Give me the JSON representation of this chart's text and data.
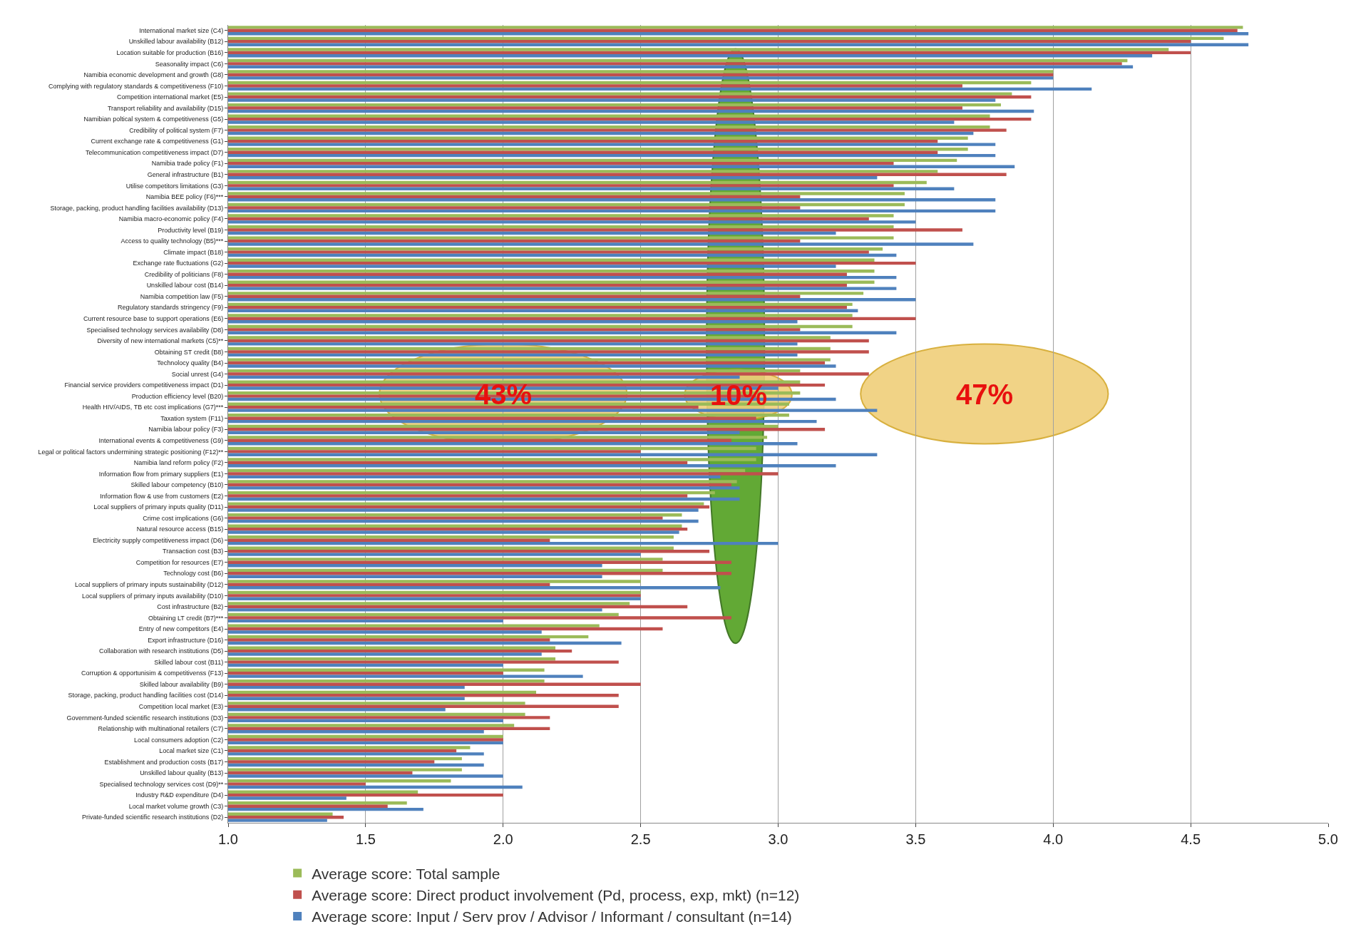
{
  "chart_data": {
    "type": "bar",
    "orientation": "horizontal",
    "categories": [
      "International market size (C4)",
      "Unskilled labour availability (B12)",
      "Location suitable for production (B16)",
      "Seasonality impact (C6)",
      "Namibia economic development and growth (G8)",
      "Complying with regulatory standards & competitiveness (F10)",
      "Competition international market (E5)",
      "Transport reliability and availability (D15)",
      "Namibian poltical system & competitiveness (G5)",
      "Credibility of political system (F7)",
      "Current exchange rate & competitiveness (G1)",
      "Telecommunication competitiveness impact (D7)",
      "Namibia trade policy (F1)",
      "General infrastructure (B1)",
      "Utilise competitors limitations (G3)",
      "Namibia BEE policy (F6)***",
      "Storage, packing, product handling facilities availability (D13)",
      "Namibia macro-economic policy (F4)",
      "Productivity level (B19)",
      "Access to quality technology (B5)***",
      "Climate impact (B18)",
      "Exchange rate fluctuations (G2)",
      "Credibility of politicians (F8)",
      "Unskilled labour cost (B14)",
      "Namibia competition law (F5)",
      "Regulatory standards stringency (F9)",
      "Current resource base to support operations (E6)",
      "Specialised technology services availability (D8)",
      "Diversity of new international markets (C5)**",
      "Obtaining ST credit (B8)",
      "Technolocy quality (B4)",
      "Social unrest (G4)",
      "Financial service providers competitiveness impact (D1)",
      "Production efficiency level (B20)",
      "Health HIV/AIDS, TB etc cost implications (G7)***",
      "Taxation system (F11)",
      "Namibia labour policy (F3)",
      "International events & competitiveness (G9)",
      "Legal or political factors undermining strategic positioning (F12)**",
      "Namibia land reform policy (F2)",
      "Information flow from primary suppliers (E1)",
      "Skilled labour competency (B10)",
      "Information flow & use from customers (E2)",
      "Local suppliers of primary inputs quality (D11)",
      "Crime cost implications (G6)",
      "Natural resource access (B15)",
      "Electricity supply competitiveness impact (D6)",
      "Transaction cost (B3)",
      "Competition for resources (E7)",
      "Technology cost (B6)",
      "Local suppliers of primary inputs sustainability (D12)",
      "Local suppliers of primary inputs availability (D10)",
      "Cost infrastructure (B2)",
      "Obtaining LT credit (B7)***",
      "Entry of new competitors (E4)",
      "Export infrastructure (D16)",
      "Collaboration with research institutions (D5)",
      "Skilled labour cost (B11)",
      "Corruption & opportunisim & competitivenss (F13)",
      "Skilled labour availability (B9)",
      "Storage, packing, product handling facilities cost (D14)",
      "Competition local market (E3)",
      "Government-funded scientific research institutions (D3)",
      "Relationship with multinational retailers (C7)",
      "Local consumers adoption (C2)",
      "Local market size (C1)",
      "Establishment and production costs (B17)",
      "Unskilled labour quality (B13)",
      "Specialised technology services cost (D9)**",
      "Industry R&D expenditure (D4)",
      "Local market volume growth (C3)",
      "Private-funded scientific research institutions (D2)"
    ],
    "series": [
      {
        "name": "Average score: Total sample",
        "color": "#9bbb59",
        "values": [
          4.69,
          4.62,
          4.42,
          4.27,
          4.0,
          3.92,
          3.85,
          3.81,
          3.77,
          3.77,
          3.69,
          3.69,
          3.65,
          3.58,
          3.54,
          3.46,
          3.46,
          3.42,
          3.42,
          3.42,
          3.38,
          3.35,
          3.35,
          3.35,
          3.31,
          3.27,
          3.27,
          3.27,
          3.19,
          3.19,
          3.19,
          3.08,
          3.08,
          3.08,
          3.04,
          3.04,
          3.0,
          2.96,
          2.92,
          2.92,
          2.88,
          2.85,
          2.77,
          2.73,
          2.65,
          2.65,
          2.62,
          2.62,
          2.58,
          2.58,
          2.5,
          2.5,
          2.46,
          2.42,
          2.35,
          2.31,
          2.19,
          2.19,
          2.15,
          2.15,
          2.12,
          2.08,
          2.08,
          2.04,
          2.0,
          1.88,
          1.85,
          1.85,
          1.81,
          1.69,
          1.65,
          1.38
        ]
      },
      {
        "name": "Average score: Direct product involvement (Pd, process, exp, mkt) (n=12)",
        "color": "#c0504d",
        "values": [
          4.67,
          4.5,
          4.5,
          4.25,
          4.0,
          3.67,
          3.92,
          3.67,
          3.92,
          3.83,
          3.58,
          3.58,
          3.42,
          3.83,
          3.42,
          3.08,
          3.08,
          3.33,
          3.67,
          3.08,
          3.33,
          3.5,
          3.25,
          3.25,
          3.08,
          3.25,
          3.5,
          3.08,
          3.33,
          3.33,
          3.17,
          3.33,
          3.17,
          2.92,
          2.71,
          2.92,
          3.17,
          2.83,
          2.5,
          2.67,
          3.0,
          2.83,
          2.67,
          2.75,
          2.58,
          2.67,
          2.17,
          2.75,
          2.83,
          2.83,
          2.17,
          2.5,
          2.67,
          2.83,
          2.58,
          2.17,
          2.25,
          2.42,
          2.0,
          2.5,
          2.42,
          2.42,
          2.17,
          2.17,
          2.0,
          1.83,
          1.75,
          1.67,
          1.5,
          2.0,
          1.58,
          1.42
        ]
      },
      {
        "name": "Average score: Input / Serv prov / Advisor / Informant / consultant (n=14)",
        "color": "#4f81bd",
        "values": [
          4.71,
          4.71,
          4.36,
          4.29,
          4.0,
          4.14,
          3.79,
          3.93,
          3.64,
          3.71,
          3.79,
          3.79,
          3.86,
          3.36,
          3.64,
          3.79,
          3.79,
          3.5,
          3.21,
          3.71,
          3.43,
          3.21,
          3.43,
          3.43,
          3.5,
          3.29,
          3.07,
          3.43,
          3.07,
          3.07,
          3.21,
          2.86,
          3.0,
          3.21,
          3.36,
          3.14,
          2.86,
          3.07,
          3.36,
          3.21,
          2.79,
          2.86,
          2.86,
          2.71,
          2.71,
          2.64,
          3.0,
          2.5,
          2.36,
          2.36,
          2.79,
          2.5,
          2.36,
          2.0,
          2.14,
          2.43,
          2.14,
          2.0,
          2.29,
          1.86,
          1.86,
          1.79,
          2.0,
          1.93,
          2.0,
          1.93,
          1.93,
          2.0,
          2.07,
          1.43,
          1.71,
          1.36
        ]
      }
    ],
    "xlim": [
      1.0,
      5.0
    ],
    "xticks": [
      {
        "value": 1.0,
        "label": "1.0"
      },
      {
        "value": 1.5,
        "label": "1.5"
      },
      {
        "value": 2.0,
        "label": "2.0"
      },
      {
        "value": 2.5,
        "label": "2.5"
      },
      {
        "value": 3.0,
        "label": "3.0"
      },
      {
        "value": 3.5,
        "label": "3.5"
      },
      {
        "value": 4.0,
        "label": "4.0"
      },
      {
        "value": 4.5,
        "label": "4.5"
      },
      {
        "value": 5.0,
        "label": "5.0"
      }
    ],
    "grid": "x",
    "legend": "bottom",
    "annotations": [
      "43%",
      "10%",
      "47%"
    ]
  }
}
